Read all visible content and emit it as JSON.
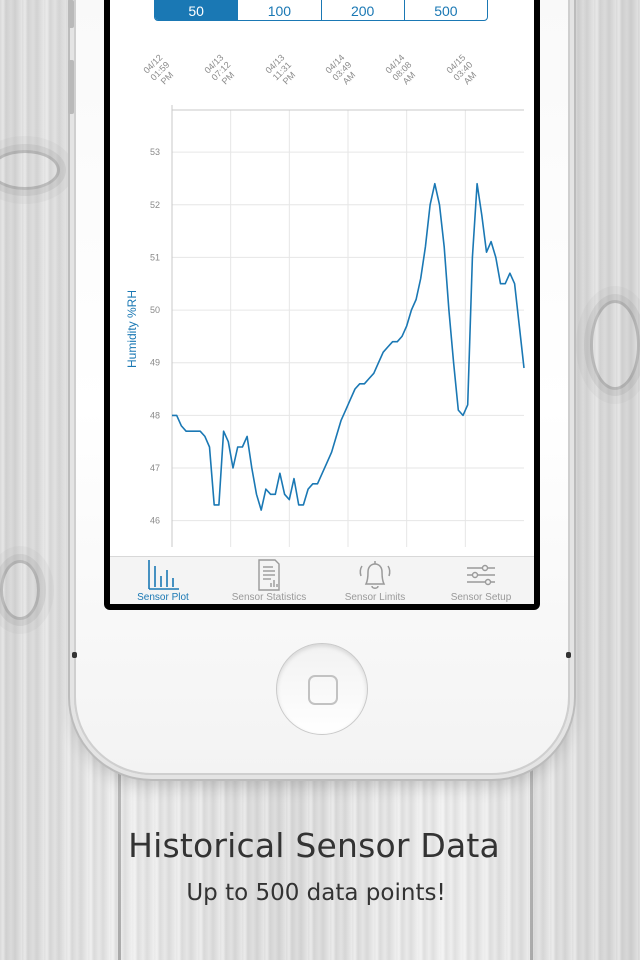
{
  "colors": {
    "accent": "#1a78b4",
    "grid": "#e6e6e6",
    "axis": "#c8c8c8",
    "tick_label": "#8a8a8a",
    "tab_inactive": "#9a9a9a"
  },
  "sample_size_control": {
    "options": [
      "50",
      "100",
      "200",
      "500"
    ],
    "selected": "50"
  },
  "date_labels": [
    {
      "date": "04/12",
      "time": "01:59",
      "ampm": "PM"
    },
    {
      "date": "04/13",
      "time": "07:12",
      "ampm": "PM"
    },
    {
      "date": "04/13",
      "time": "11:31",
      "ampm": "PM"
    },
    {
      "date": "04/14",
      "time": "03:49",
      "ampm": "AM"
    },
    {
      "date": "04/14",
      "time": "08:08",
      "ampm": "AM"
    },
    {
      "date": "04/15",
      "time": "03:40",
      "ampm": "AM"
    }
  ],
  "chart_data": {
    "type": "line",
    "title": "",
    "xlabel": "",
    "ylabel": "Humidity %RH",
    "ylim": [
      45.5,
      53.8
    ],
    "yticks": [
      "46",
      "47",
      "48",
      "49",
      "50",
      "51",
      "52",
      "53"
    ],
    "grid": true,
    "series": [
      {
        "values": [
          48.0,
          48.0,
          47.8,
          47.7,
          47.7,
          47.7,
          47.7,
          47.6,
          47.4,
          46.3,
          46.3,
          47.7,
          47.5,
          47.0,
          47.4,
          47.4,
          47.6,
          47.0,
          46.5,
          46.2,
          46.6,
          46.5,
          46.5,
          46.9,
          46.5,
          46.4,
          46.8,
          46.3,
          46.3,
          46.6,
          46.7,
          46.7,
          46.9,
          47.1,
          47.3,
          47.6,
          47.9,
          48.1,
          48.3,
          48.5,
          48.6,
          48.6,
          48.7,
          48.8,
          49.0,
          49.2,
          49.3,
          49.4,
          49.4,
          49.5,
          49.7,
          50.0,
          50.2,
          50.6,
          51.2,
          52.0,
          52.4,
          52.0,
          51.2,
          50.0,
          49.0,
          48.1,
          48.0,
          48.2,
          51.0,
          52.4,
          51.8,
          51.1,
          51.3,
          51.0,
          50.5,
          50.5,
          50.7,
          50.5,
          49.7,
          48.9
        ]
      }
    ]
  },
  "tabs": [
    {
      "label": "Sensor Plot",
      "icon": "bar-chart-icon",
      "active": true
    },
    {
      "label": "Sensor Statistics",
      "icon": "document-icon",
      "active": false
    },
    {
      "label": "Sensor Limits",
      "icon": "bell-icon",
      "active": false
    },
    {
      "label": "Sensor Setup",
      "icon": "sliders-icon",
      "active": false
    }
  ],
  "caption": {
    "title": "Historical Sensor Data",
    "subtitle": "Up to 500 data points!"
  }
}
